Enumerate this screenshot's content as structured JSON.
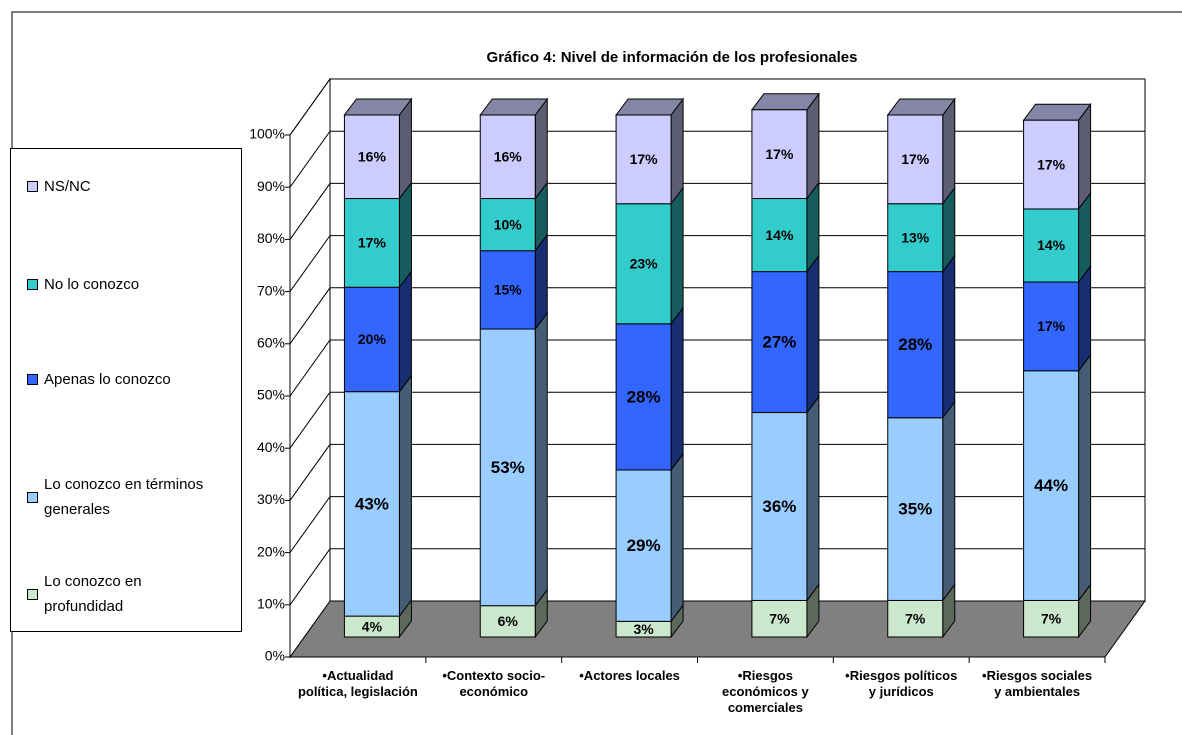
{
  "chart_data": {
    "type": "bar3d_stacked_percent",
    "title": "Gráfico 4: Nivel de información de los profesionales",
    "categories": [
      "•Actualidad política, legislación",
      "•Contexto socio-económico",
      "•Actores locales",
      "•Riesgos económicos y comerciales",
      "•Riesgos políticos y jurídicos",
      "•Riesgos sociales y ambientales"
    ],
    "series": [
      {
        "name": "Lo conozco en profundidad",
        "color": "#cce8cc",
        "values": [
          4,
          6,
          3,
          7,
          7,
          7
        ],
        "value_labels": [
          "4%",
          "6%",
          "3%",
          "7%",
          "7%",
          "7%"
        ]
      },
      {
        "name": "Lo conozco en términos generales",
        "color": "#99ccff",
        "values": [
          43,
          53,
          29,
          36,
          35,
          44
        ],
        "value_labels": [
          "43%",
          "53%",
          "29%",
          "36%",
          "35%",
          "44%"
        ]
      },
      {
        "name": "Apenas lo conozco",
        "color": "#3366ff",
        "values": [
          20,
          15,
          28,
          27,
          28,
          17
        ],
        "value_labels": [
          "20%",
          "15%",
          "28%",
          "27%",
          "28%",
          "17%"
        ]
      },
      {
        "name": "No lo conozco",
        "color": "#33cccc",
        "values": [
          17,
          10,
          23,
          14,
          13,
          14
        ],
        "value_labels": [
          "17%",
          "10%",
          "23%",
          "14%",
          "13%",
          "14%"
        ]
      },
      {
        "name": "NS/NC",
        "color": "#ccccff",
        "values": [
          16,
          16,
          17,
          17,
          17,
          17
        ],
        "value_labels": [
          "16%",
          "16%",
          "17%",
          "17%",
          "17%",
          "17%"
        ]
      }
    ],
    "ylim": [
      0,
      100
    ],
    "yticks": [
      {
        "value": 0,
        "label": "0%"
      },
      {
        "value": 10,
        "label": "10%"
      },
      {
        "value": 20,
        "label": "20%"
      },
      {
        "value": 30,
        "label": "30%"
      },
      {
        "value": 40,
        "label": "40%"
      },
      {
        "value": 50,
        "label": "50%"
      },
      {
        "value": 60,
        "label": "60%"
      },
      {
        "value": 70,
        "label": "70%"
      },
      {
        "value": 80,
        "label": "80%"
      },
      {
        "value": 90,
        "label": "90%"
      },
      {
        "value": 100,
        "label": "100%"
      }
    ],
    "grid": true,
    "legend": "left"
  }
}
